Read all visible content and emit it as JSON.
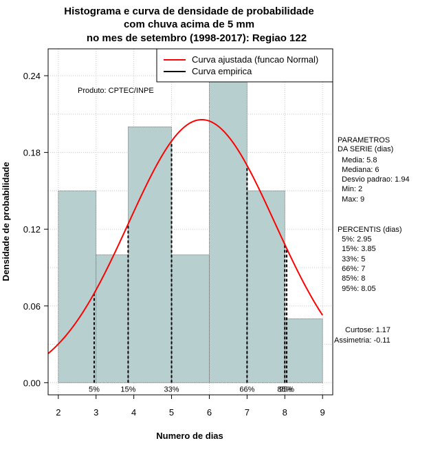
{
  "chart_data": {
    "type": "bar",
    "title_lines": [
      "Histograma e curva de densidade de probabilidade",
      "com chuva acima de 5 mm",
      "no mes de setembro (1998-2017): Regiao 122"
    ],
    "xlabel": "Numero de dias",
    "ylabel": "Densidade de probabilidade",
    "xlim": [
      1.73,
      9.27
    ],
    "ylim": [
      -0.0095,
      0.261
    ],
    "x_ticks": [
      2,
      3,
      4,
      5,
      6,
      7,
      8,
      9
    ],
    "y_ticks": [
      0.0,
      0.06,
      0.12,
      0.18,
      0.24
    ],
    "y_tick_labels": [
      "0.00",
      "0.06",
      "0.12",
      "0.18",
      "0.24"
    ],
    "bins": [
      {
        "from": 2,
        "to": 3,
        "density": 0.15
      },
      {
        "from": 3,
        "to": 3.85,
        "density": 0.1
      },
      {
        "from": 3.85,
        "to": 5,
        "density": 0.2
      },
      {
        "from": 5,
        "to": 6,
        "density": 0.1
      },
      {
        "from": 6,
        "to": 7,
        "density": 0.25
      },
      {
        "from": 7,
        "to": 8,
        "density": 0.15
      },
      {
        "from": 8,
        "to": 9,
        "density": 0.05
      }
    ],
    "bar_color": "#b7cfcf",
    "curve_color": "#ff0000",
    "normal_fit": {
      "mean": 5.8,
      "sd": 1.94
    },
    "gridlines": true,
    "percentile_markers": [
      {
        "label": "5%",
        "x": 2.95
      },
      {
        "label": "15%",
        "x": 3.85
      },
      {
        "label": "33%",
        "x": 5
      },
      {
        "label": "66%",
        "x": 7
      },
      {
        "label": "85%",
        "x": 8
      },
      {
        "label": "95%",
        "x": 8.05
      }
    ],
    "legend": {
      "position": "top-right",
      "entries": [
        {
          "label": "Curva ajustada (funcao Normal)",
          "color": "#ff0000"
        },
        {
          "label": "Curva empirica",
          "color": "#000000"
        }
      ]
    },
    "source_note": "Produto: CPTEC/INPE"
  },
  "sidebar": {
    "params_lines": [
      "PARAMETROS",
      "DA SERIE (dias)",
      "  Media: 5.8",
      "  Mediana: 6",
      "  Desvio padrao: 1.94",
      "  Min: 2",
      "  Max: 9"
    ],
    "percentis_lines": [
      "PERCENTIS (dias)",
      "  5%: 2.95",
      "  15%: 3.85",
      "  33%: 5",
      "  66%: 7",
      "  85%: 8",
      "  95%: 8.05"
    ],
    "curtose": "Curtose: 1.17",
    "assimetria": "Assimetria: -0.11"
  }
}
